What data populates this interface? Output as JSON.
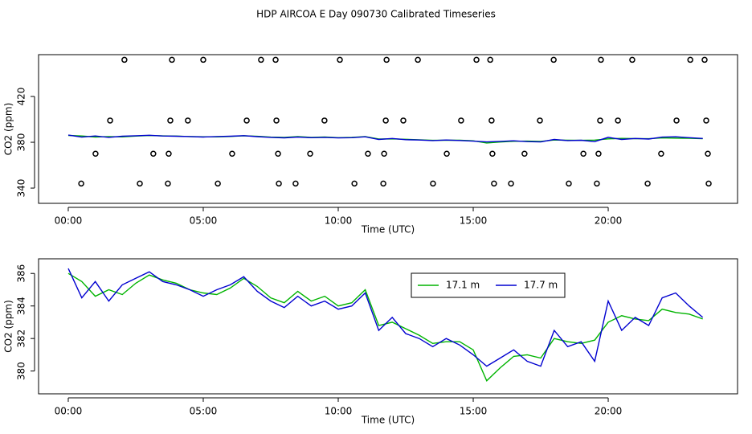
{
  "chart_data": [
    {
      "type": "scatter",
      "title": "HDP AIRCOA E  Day 090730  Calibrated Timeseries",
      "x_label": "Time (UTC)",
      "y_label": "CO2 (ppm)",
      "xlim": [
        -1.1,
        24.79
      ],
      "ylim": [
        326.7,
        456.5
      ],
      "xticks": [
        {
          "value": 0,
          "label": "00:00"
        },
        {
          "value": 5,
          "label": "05:00"
        },
        {
          "value": 10,
          "label": "10:00"
        },
        {
          "value": 15,
          "label": "15:00"
        },
        {
          "value": 20,
          "label": "20:00"
        }
      ],
      "yticks": [
        340,
        380,
        420
      ],
      "x": [
        2.08,
        3.84,
        5.0,
        7.14,
        7.68,
        10.06,
        11.79,
        12.95,
        15.12,
        15.63,
        17.98,
        19.73,
        20.89,
        23.04,
        23.57,
        1.55,
        3.78,
        4.43,
        6.61,
        7.71,
        9.49,
        11.76,
        12.41,
        14.55,
        15.68,
        17.47,
        19.7,
        20.36,
        22.53,
        23.63,
        1.01,
        3.15,
        3.72,
        6.07,
        7.77,
        8.96,
        11.1,
        11.7,
        14.02,
        15.71,
        16.9,
        19.08,
        19.64,
        21.96,
        23.69,
        0.48,
        2.65,
        3.69,
        5.54,
        7.8,
        8.42,
        10.6,
        11.67,
        13.51,
        15.77,
        16.4,
        18.54,
        19.58,
        21.46,
        23.72
      ],
      "y": [
        452,
        452,
        452,
        452,
        452,
        452,
        452,
        452,
        452,
        452,
        452,
        452,
        452,
        452,
        452,
        399,
        399,
        399,
        399,
        399,
        399,
        399,
        399,
        399,
        399,
        399,
        399,
        399,
        399,
        399,
        370,
        370,
        370,
        370,
        370,
        370,
        370,
        370,
        370,
        370,
        370,
        370,
        370,
        370,
        370,
        344,
        344,
        344,
        344,
        344,
        344,
        344,
        344,
        344,
        344,
        344,
        344,
        344,
        344,
        344
      ]
    },
    {
      "type": "line",
      "x_label": "Time (UTC)",
      "y_label": "CO2 (ppm)",
      "xlim": [
        -1.1,
        24.79
      ],
      "ylim": [
        378.6,
        386.9
      ],
      "xticks": [
        {
          "value": 0,
          "label": "00:00"
        },
        {
          "value": 5,
          "label": "05:00"
        },
        {
          "value": 10,
          "label": "10:00"
        },
        {
          "value": 15,
          "label": "15:00"
        },
        {
          "value": 20,
          "label": "20:00"
        }
      ],
      "yticks": [
        380,
        382,
        384,
        386
      ],
      "legend": "top",
      "x": [
        0,
        0.5,
        1,
        1.5,
        2,
        2.5,
        3,
        3.5,
        4,
        4.5,
        5,
        5.5,
        6,
        6.5,
        7,
        7.5,
        8,
        8.5,
        9,
        9.5,
        10,
        10.5,
        11,
        11.5,
        12,
        12.5,
        13,
        13.5,
        14,
        14.5,
        15,
        15.5,
        16,
        16.5,
        17,
        17.5,
        18,
        18.5,
        19,
        19.5,
        20,
        20.5,
        21,
        21.5,
        22,
        22.5,
        23,
        23.5
      ],
      "series": [
        {
          "name": "17.1 m",
          "color": "#00b400",
          "values": [
            386.0,
            385.5,
            384.6,
            385.0,
            384.7,
            385.4,
            385.9,
            385.6,
            385.4,
            385.0,
            384.8,
            384.7,
            385.1,
            385.7,
            385.2,
            384.5,
            384.2,
            384.9,
            384.3,
            384.6,
            384.0,
            384.2,
            385.0,
            382.8,
            383.0,
            382.6,
            382.2,
            381.7,
            381.8,
            381.8,
            381.3,
            379.4,
            380.2,
            380.9,
            381.0,
            380.8,
            382.0,
            381.8,
            381.7,
            381.9,
            383.0,
            383.4,
            383.2,
            383.1,
            383.8,
            383.6,
            383.5,
            383.2
          ]
        },
        {
          "name": "17.7 m",
          "color": "#0000d0",
          "values": [
            386.3,
            384.5,
            385.5,
            384.3,
            385.3,
            385.7,
            386.1,
            385.5,
            385.3,
            385.0,
            384.6,
            385.0,
            385.3,
            385.8,
            384.9,
            384.3,
            383.9,
            384.6,
            384.0,
            384.3,
            383.8,
            384.0,
            384.8,
            382.5,
            383.3,
            382.3,
            382.0,
            381.5,
            382.0,
            381.6,
            381.0,
            380.3,
            380.8,
            381.3,
            380.6,
            380.3,
            382.5,
            381.5,
            381.8,
            380.6,
            384.3,
            382.5,
            383.3,
            382.8,
            384.5,
            384.8,
            384.0,
            383.3
          ]
        }
      ]
    }
  ]
}
